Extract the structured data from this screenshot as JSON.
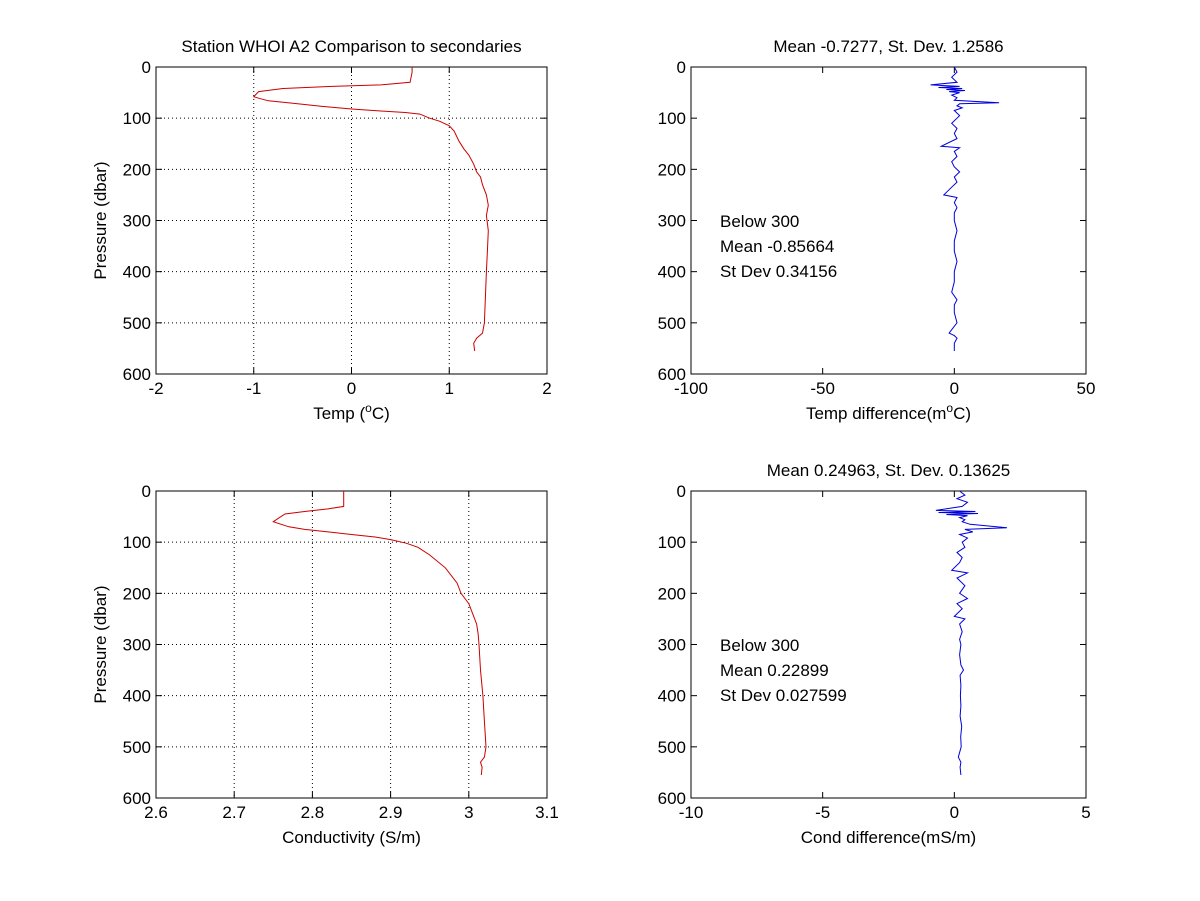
{
  "colors": {
    "temp_profile": "#cc0000",
    "cond_profile": "#cc0000",
    "difference": "#0000dd",
    "grid": "#000000"
  },
  "chart_data": [
    {
      "id": "temp-profile",
      "type": "line",
      "title": "Station  WHOI A2 Comparison to secondaries",
      "xlabel": "Temp (",
      "xlabel_sup": "o",
      "xlabel_suffix": "C)",
      "ylabel": "Pressure (dbar)",
      "xlim": [
        -2,
        2
      ],
      "ylim": [
        0,
        600
      ],
      "y_reversed": true,
      "grid": true,
      "xticks": [
        "-2",
        "-1",
        "0",
        "1",
        "2"
      ],
      "yticks": [
        "0",
        "100",
        "200",
        "300",
        "400",
        "500",
        "600"
      ],
      "series": [
        {
          "color": "temp_profile",
          "points": [
            [
              0.62,
              0
            ],
            [
              0.62,
              10
            ],
            [
              0.6,
              30
            ],
            [
              0.3,
              35
            ],
            [
              -0.2,
              38
            ],
            [
              -0.7,
              42
            ],
            [
              -0.95,
              48
            ],
            [
              -1.0,
              58
            ],
            [
              -0.95,
              61
            ],
            [
              -0.85,
              66
            ],
            [
              -0.6,
              71
            ],
            [
              -0.3,
              77
            ],
            [
              0.0,
              82
            ],
            [
              0.3,
              86
            ],
            [
              0.55,
              89
            ],
            [
              0.7,
              92
            ],
            [
              0.8,
              100
            ],
            [
              0.9,
              106
            ],
            [
              1.0,
              115
            ],
            [
              1.05,
              125
            ],
            [
              1.1,
              145
            ],
            [
              1.15,
              160
            ],
            [
              1.2,
              172
            ],
            [
              1.25,
              190
            ],
            [
              1.28,
              205
            ],
            [
              1.32,
              215
            ],
            [
              1.34,
              230
            ],
            [
              1.38,
              250
            ],
            [
              1.4,
              270
            ],
            [
              1.38,
              290
            ],
            [
              1.4,
              320
            ],
            [
              1.39,
              360
            ],
            [
              1.38,
              400
            ],
            [
              1.37,
              450
            ],
            [
              1.36,
              500
            ],
            [
              1.34,
              520
            ],
            [
              1.28,
              530
            ],
            [
              1.25,
              540
            ],
            [
              1.26,
              555
            ]
          ]
        }
      ]
    },
    {
      "id": "temp-difference",
      "type": "line",
      "title": "Mean -0.7277, St. Dev. 1.2586",
      "xlabel": "Temp difference(m",
      "xlabel_sup": "o",
      "xlabel_suffix": "C)",
      "ylabel": "",
      "xlim": [
        -100,
        50
      ],
      "ylim": [
        0,
        600
      ],
      "y_reversed": true,
      "grid": false,
      "xticks": [
        "-100",
        "-50",
        "0",
        "50"
      ],
      "yticks": [
        "0",
        "100",
        "200",
        "300",
        "400",
        "500",
        "600"
      ],
      "annotation": [
        "Below 300",
        "Mean -0.85664",
        "St Dev 0.34156"
      ],
      "series": [
        {
          "color": "difference",
          "points": [
            [
              0,
              0
            ],
            [
              1,
              10
            ],
            [
              -1,
              20
            ],
            [
              1,
              30
            ],
            [
              -9,
              35
            ],
            [
              2,
              38
            ],
            [
              -6,
              40
            ],
            [
              3,
              42
            ],
            [
              -3,
              44
            ],
            [
              4,
              46
            ],
            [
              -2,
              48
            ],
            [
              2,
              50
            ],
            [
              -1,
              55
            ],
            [
              1,
              60
            ],
            [
              0,
              65
            ],
            [
              17,
              70
            ],
            [
              2,
              72
            ],
            [
              1,
              76
            ],
            [
              3,
              80
            ],
            [
              0,
              85
            ],
            [
              2,
              95
            ],
            [
              1,
              100
            ],
            [
              -1,
              110
            ],
            [
              1,
              120
            ],
            [
              0,
              130
            ],
            [
              1,
              140
            ],
            [
              -5,
              155
            ],
            [
              2,
              158
            ],
            [
              0,
              165
            ],
            [
              1,
              175
            ],
            [
              -1,
              185
            ],
            [
              0,
              195
            ],
            [
              2,
              205
            ],
            [
              0,
              215
            ],
            [
              1,
              225
            ],
            [
              -1,
              235
            ],
            [
              -4,
              250
            ],
            [
              1,
              255
            ],
            [
              0,
              265
            ],
            [
              1,
              275
            ],
            [
              0,
              285
            ],
            [
              0,
              300
            ],
            [
              1,
              320
            ],
            [
              0,
              340
            ],
            [
              0,
              360
            ],
            [
              1,
              380
            ],
            [
              0,
              400
            ],
            [
              0,
              420
            ],
            [
              -1,
              440
            ],
            [
              1,
              455
            ],
            [
              0,
              465
            ],
            [
              0,
              480
            ],
            [
              1,
              500
            ],
            [
              -2,
              520
            ],
            [
              0,
              525
            ],
            [
              1,
              530
            ],
            [
              0,
              540
            ],
            [
              0,
              555
            ]
          ]
        }
      ]
    },
    {
      "id": "cond-profile",
      "type": "line",
      "title": "",
      "xlabel": "Conductivity (S/m)",
      "xlabel_sup": "",
      "xlabel_suffix": "",
      "ylabel": "Pressure (dbar)",
      "xlim": [
        2.6,
        3.1
      ],
      "ylim": [
        0,
        600
      ],
      "y_reversed": true,
      "grid": true,
      "xticks": [
        "2.6",
        "2.7",
        "2.8",
        "2.9",
        "3",
        "3.1"
      ],
      "yticks": [
        "0",
        "100",
        "200",
        "300",
        "400",
        "500",
        "600"
      ],
      "series": [
        {
          "color": "cond_profile",
          "points": [
            [
              2.84,
              0
            ],
            [
              2.84,
              15
            ],
            [
              2.84,
              30
            ],
            [
              2.82,
              35
            ],
            [
              2.79,
              40
            ],
            [
              2.765,
              45
            ],
            [
              2.755,
              55
            ],
            [
              2.75,
              60
            ],
            [
              2.76,
              65
            ],
            [
              2.77,
              70
            ],
            [
              2.79,
              75
            ],
            [
              2.82,
              80
            ],
            [
              2.85,
              85
            ],
            [
              2.88,
              90
            ],
            [
              2.9,
              95
            ],
            [
              2.92,
              102
            ],
            [
              2.935,
              110
            ],
            [
              2.95,
              125
            ],
            [
              2.97,
              150
            ],
            [
              2.985,
              180
            ],
            [
              2.99,
              200
            ],
            [
              2.995,
              210
            ],
            [
              3.0,
              220
            ],
            [
              3.005,
              240
            ],
            [
              3.01,
              260
            ],
            [
              3.012,
              280
            ],
            [
              3.013,
              300
            ],
            [
              3.015,
              350
            ],
            [
              3.018,
              400
            ],
            [
              3.02,
              450
            ],
            [
              3.022,
              500
            ],
            [
              3.02,
              520
            ],
            [
              3.015,
              530
            ],
            [
              3.017,
              540
            ],
            [
              3.016,
              555
            ]
          ]
        }
      ]
    },
    {
      "id": "cond-difference",
      "type": "line",
      "title": "Mean 0.24963, St. Dev. 0.13625",
      "xlabel": "Cond difference(mS/m)",
      "xlabel_sup": "",
      "xlabel_suffix": "",
      "ylabel": "",
      "xlim": [
        -10,
        5
      ],
      "ylim": [
        0,
        600
      ],
      "y_reversed": true,
      "grid": false,
      "xticks": [
        "-10",
        "-5",
        "0",
        "5"
      ],
      "yticks": [
        "0",
        "100",
        "200",
        "300",
        "400",
        "500",
        "600"
      ],
      "annotation": [
        "Below 300",
        "Mean 0.22899",
        "St Dev 0.027599"
      ],
      "series": [
        {
          "color": "difference",
          "points": [
            [
              0.2,
              0
            ],
            [
              0.4,
              8
            ],
            [
              0.1,
              15
            ],
            [
              0.5,
              22
            ],
            [
              0.3,
              30
            ],
            [
              -0.7,
              38
            ],
            [
              0.8,
              40
            ],
            [
              -0.6,
              42
            ],
            [
              0.9,
              44
            ],
            [
              -0.3,
              46
            ],
            [
              0.5,
              48
            ],
            [
              0.2,
              52
            ],
            [
              0.4,
              56
            ],
            [
              0.3,
              60
            ],
            [
              0.6,
              65
            ],
            [
              2.0,
              72
            ],
            [
              0.4,
              75
            ],
            [
              0.7,
              80
            ],
            [
              0.2,
              85
            ],
            [
              0.5,
              92
            ],
            [
              0.3,
              100
            ],
            [
              0.4,
              110
            ],
            [
              0.1,
              120
            ],
            [
              0.3,
              130
            ],
            [
              0.2,
              140
            ],
            [
              -0.1,
              155
            ],
            [
              0.5,
              160
            ],
            [
              0.1,
              170
            ],
            [
              0.4,
              185
            ],
            [
              0.2,
              200
            ],
            [
              0.5,
              210
            ],
            [
              0.1,
              220
            ],
            [
              0.3,
              230
            ],
            [
              0.0,
              245
            ],
            [
              0.4,
              250
            ],
            [
              0.2,
              260
            ],
            [
              0.3,
              275
            ],
            [
              0.2,
              290
            ],
            [
              0.25,
              300
            ],
            [
              0.2,
              320
            ],
            [
              0.25,
              340
            ],
            [
              0.35,
              350
            ],
            [
              0.22,
              360
            ],
            [
              0.25,
              380
            ],
            [
              0.23,
              400
            ],
            [
              0.25,
              420
            ],
            [
              0.22,
              440
            ],
            [
              0.28,
              460
            ],
            [
              0.24,
              480
            ],
            [
              0.26,
              500
            ],
            [
              0.15,
              520
            ],
            [
              0.25,
              530
            ],
            [
              0.22,
              540
            ],
            [
              0.25,
              555
            ]
          ]
        }
      ]
    }
  ]
}
